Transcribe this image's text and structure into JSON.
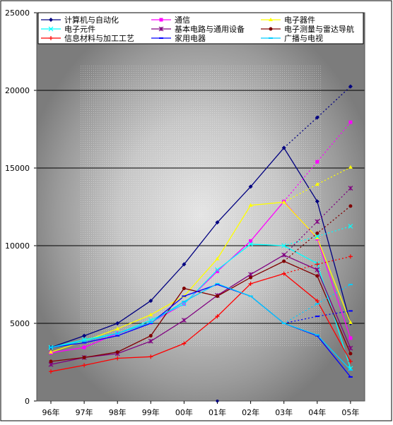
{
  "chart_data": {
    "type": "line",
    "title": "",
    "xlabel": "",
    "ylabel": "",
    "categories": [
      "96年",
      "97年",
      "98年",
      "99年",
      "00年",
      "01年",
      "02年",
      "03年",
      "04年",
      "05年"
    ],
    "ylim": [
      0,
      25000
    ],
    "yticks": [
      "0",
      "5000",
      "10000",
      "15000",
      "20000",
      "25000"
    ],
    "grid": "horizontal",
    "legend_position": "top",
    "solid_until_index": 7,
    "series": [
      {
        "name": "计算机与自动化",
        "color": "#000080",
        "marker": "diamond",
        "values": [
          3450,
          4200,
          5000,
          6450,
          8800,
          11500,
          13800,
          16300,
          18250,
          20250
        ],
        "drop_values": [
          12850,
          5000
        ]
      },
      {
        "name": "通信",
        "color": "#ff00ff",
        "marker": "square",
        "values": [
          3100,
          3450,
          4350,
          5050,
          6250,
          8350,
          10300,
          12850,
          15400,
          17950
        ],
        "drop_values": [
          10450,
          4050
        ]
      },
      {
        "name": "电子器件",
        "color": "#ffff00",
        "marker": "triangle",
        "values": [
          3150,
          3850,
          4650,
          5550,
          6750,
          9150,
          12600,
          12800,
          13950,
          15050
        ],
        "drop_values": [
          10500,
          5050
        ]
      },
      {
        "name": "电子元件",
        "color": "#00ffff",
        "marker": "x",
        "values": [
          3450,
          3950,
          4350,
          5200,
          6250,
          8450,
          10100,
          10000,
          10600,
          11250
        ],
        "drop_values": [
          8850,
          2100
        ]
      },
      {
        "name": "基本电路与通用设备",
        "color": "#800080",
        "marker": "star",
        "values": [
          2350,
          2800,
          3050,
          3850,
          5200,
          6800,
          8150,
          9400,
          11550,
          13700
        ],
        "drop_values": [
          8450,
          3400
        ]
      },
      {
        "name": "电子测量与雷达导航",
        "color": "#800000",
        "marker": "circle",
        "values": [
          2550,
          2800,
          3150,
          4200,
          7250,
          6750,
          7950,
          9000,
          10800,
          12550
        ],
        "drop_values": [
          8050,
          3050
        ]
      },
      {
        "name": "信息材料与加工工艺",
        "color": "#ff0000",
        "marker": "plus",
        "values": [
          1900,
          2300,
          2750,
          2850,
          3700,
          5450,
          7550,
          8200,
          8800,
          9300
        ],
        "drop_values": [
          6450,
          2550
        ]
      },
      {
        "name": "家用电器",
        "color": "#0000ff",
        "marker": "dash",
        "values": [
          3450,
          3750,
          4200,
          5000,
          6750,
          7500,
          6750,
          5000,
          5450,
          5800
        ],
        "drop_values": [
          4200,
          1550
        ]
      },
      {
        "name": "广播与电视",
        "color": "#00ccff",
        "marker": "dash",
        "values": [
          3450,
          3850,
          4350,
          5050,
          6400,
          7550,
          6750,
          5000,
          6250,
          7500
        ],
        "drop_values": [
          4250,
          2000
        ]
      }
    ]
  }
}
